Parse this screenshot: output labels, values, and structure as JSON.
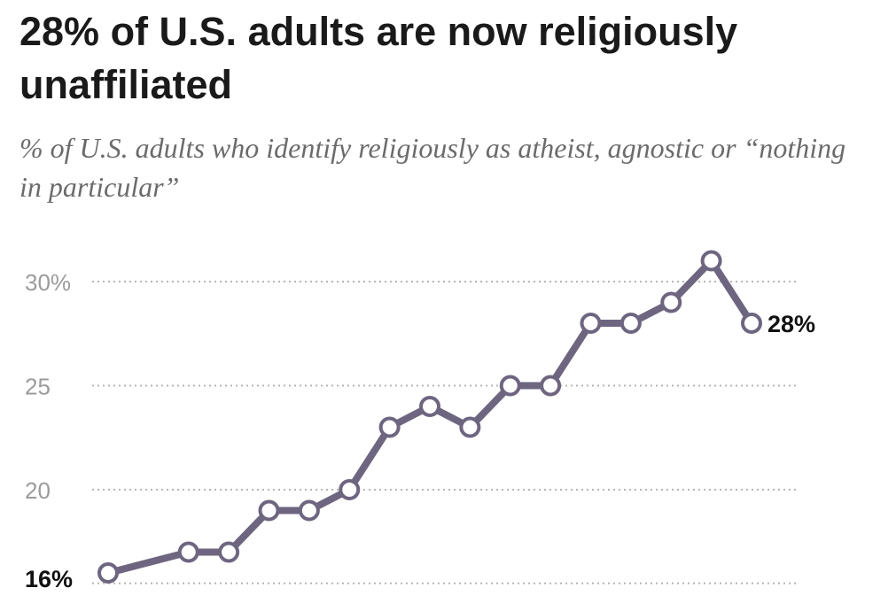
{
  "title": "28% of U.S. adults are now religiously unaffiliated",
  "subtitle": "% of U.S. adults who identify religiously as atheist, agnostic or “nothing in particular”",
  "colors": {
    "line": "#6e6680",
    "marker_fill": "#ffffff",
    "grid": "#b5b5b5",
    "tick_text": "#9b9b9b"
  },
  "chart_data": {
    "type": "line",
    "title": "28% of U.S. adults are now religiously unaffiliated",
    "subtitle": "% of U.S. adults who identify religiously as atheist, agnostic or “nothing in particular”",
    "xlabel": "",
    "ylabel": "",
    "ylim": [
      15,
      31
    ],
    "yticks": [
      {
        "value": 30,
        "label": "30%"
      },
      {
        "value": 25,
        "label": "25"
      },
      {
        "value": 20,
        "label": "20"
      }
    ],
    "grid": true,
    "x": [
      0,
      2,
      3,
      4,
      5,
      6,
      7,
      8,
      9,
      10,
      11,
      12,
      13,
      14,
      15,
      16
    ],
    "values": [
      16,
      17,
      17,
      19,
      19,
      20,
      23,
      24,
      23,
      25,
      25,
      28,
      28,
      29,
      31,
      28
    ],
    "start_label": "16%",
    "end_label": "28%"
  }
}
